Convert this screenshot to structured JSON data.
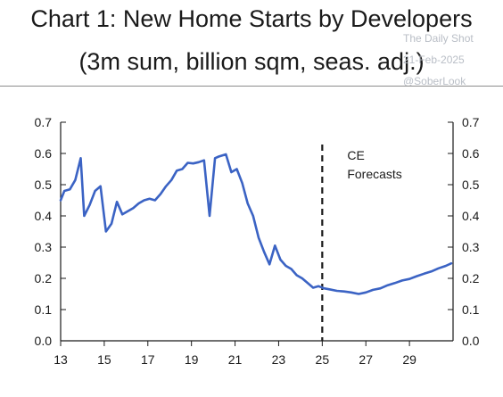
{
  "watermark": {
    "line1": "The Daily Shot",
    "line2": "21-Feb-2025",
    "line3": "@SoberLook"
  },
  "chart_data": {
    "type": "line",
    "title": "Chart 1: New Home Starts by Developers",
    "subtitle": "(3m sum, billion sqm, seas. adj.)",
    "xlabel": "",
    "ylabel": "",
    "xlim": [
      13,
      31
    ],
    "ylim": [
      0,
      0.7
    ],
    "x_ticks": [
      "13",
      "15",
      "17",
      "19",
      "21",
      "23",
      "25",
      "27",
      "29"
    ],
    "x_tick_values": [
      13,
      15,
      17,
      19,
      21,
      23,
      25,
      27,
      29
    ],
    "y_ticks_left": [
      "0.0",
      "0.1",
      "0.2",
      "0.3",
      "0.4",
      "0.5",
      "0.6",
      "0.7"
    ],
    "y_ticks_right": [
      "0.0",
      "0.1",
      "0.2",
      "0.3",
      "0.4",
      "0.5",
      "0.6",
      "0.7"
    ],
    "y_tick_values": [
      0,
      0.1,
      0.2,
      0.3,
      0.4,
      0.5,
      0.6,
      0.7
    ],
    "grid": false,
    "forecast_start": 25,
    "forecast_label_line1": "CE",
    "forecast_label_line2": "Forecasts",
    "line_color": "#3b63c4",
    "series": [
      {
        "x": [
          13.0,
          13.17,
          13.42,
          13.67,
          13.92,
          14.08,
          14.33,
          14.58,
          14.83,
          15.08,
          15.33,
          15.58,
          15.83,
          16.08,
          16.33,
          16.58,
          16.83,
          17.08,
          17.33,
          17.58,
          17.83,
          18.08,
          18.33,
          18.58,
          18.83,
          19.08,
          19.33,
          19.58,
          19.83,
          20.08,
          20.25,
          20.58,
          20.83,
          21.08,
          21.33,
          21.58,
          21.83,
          22.08,
          22.33,
          22.58,
          22.83,
          23.08,
          23.33,
          23.58,
          23.83,
          24.08,
          24.33,
          24.58,
          24.83,
          25.08,
          25.33,
          25.67,
          26.0,
          26.33,
          26.67,
          27.0,
          27.33,
          27.67,
          28.0,
          28.33,
          28.67,
          29.0,
          29.33,
          29.67,
          30.0,
          30.33,
          30.67,
          30.92
        ],
        "y": [
          0.45,
          0.48,
          0.485,
          0.515,
          0.585,
          0.4,
          0.435,
          0.48,
          0.495,
          0.35,
          0.375,
          0.445,
          0.405,
          0.415,
          0.425,
          0.44,
          0.45,
          0.455,
          0.45,
          0.47,
          0.495,
          0.515,
          0.545,
          0.55,
          0.57,
          0.568,
          0.572,
          0.578,
          0.4,
          0.585,
          0.59,
          0.597,
          0.54,
          0.55,
          0.505,
          0.44,
          0.4,
          0.33,
          0.285,
          0.245,
          0.305,
          0.26,
          0.24,
          0.23,
          0.21,
          0.2,
          0.185,
          0.17,
          0.175,
          0.168,
          0.165,
          0.16,
          0.158,
          0.155,
          0.15,
          0.155,
          0.163,
          0.168,
          0.178,
          0.185,
          0.193,
          0.198,
          0.207,
          0.215,
          0.222,
          0.232,
          0.24,
          0.248
        ]
      }
    ]
  }
}
